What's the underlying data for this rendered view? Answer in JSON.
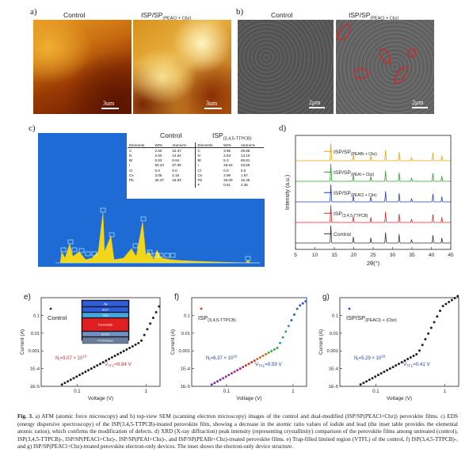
{
  "panel_a": {
    "label": "a)",
    "titles": [
      "Control",
      "ISP/SP",
      "(PEACl + Cbz)"
    ],
    "scale": [
      "3um",
      "3um"
    ]
  },
  "panel_b": {
    "label": "b)",
    "titles": [
      "Control",
      "ISP/SP",
      "(PEACl + Cbz)"
    ],
    "scale": [
      "2μm",
      "2μm"
    ]
  },
  "panel_c": {
    "label": "c)",
    "header_control": "Control",
    "header_isp": "ISP",
    "header_isp_sub": "(3,4,5-TTPCB)",
    "col_headers": [
      "Elements",
      "Wt%",
      "Atomic%",
      "Elements",
      "Wt%",
      "Atomic%"
    ],
    "rows": [
      [
        "C",
        "2.60",
        "22.37",
        "C",
        "3.96",
        "29.88"
      ],
      [
        "N",
        "2.50",
        "14.54",
        "N",
        "2.54",
        "14.15"
      ],
      [
        "Br",
        "5.53",
        "6.64",
        "Br",
        "5.3",
        "65.81"
      ],
      [
        "I",
        "50.24",
        "37.95",
        "I",
        "48.64",
        "33.56"
      ],
      [
        "Cl",
        "0.0",
        "0.0",
        "Cl",
        "0.0",
        "0.0"
      ],
      [
        "Cs",
        "3.05",
        "2.16",
        "Cs",
        "2.99",
        "1.97"
      ],
      [
        "Pb",
        "36.37",
        "16.83",
        "Pb",
        "36.05",
        "15.48"
      ],
      [
        "",
        "",
        "",
        "F",
        "0.51",
        "2.35"
      ]
    ]
  },
  "chart_data": [
    {
      "type": "line",
      "panel": "d",
      "xlabel": "2θ(°)",
      "ylabel": "Intensity (a.u.)",
      "xlim": [
        5,
        45
      ],
      "xticks": [
        5,
        10,
        15,
        20,
        25,
        30,
        35,
        40,
        45
      ],
      "series": [
        {
          "name": "Control",
          "color": "#333333"
        },
        {
          "name": "ISP",
          "sub": "(3,4,5-TTPCB)",
          "color": "#d62728"
        },
        {
          "name": "ISP/SP",
          "sub": "(PEACl + Cbz)",
          "color": "#1f3fbf"
        },
        {
          "name": "ISP/SP",
          "sub": "(PEAI + Cbz)",
          "color": "#2ca02c"
        },
        {
          "name": "ISP/SP",
          "sub": "(PEABr + Cbz)",
          "color": "#f0a30a"
        }
      ]
    },
    {
      "type": "scatter",
      "panel": "e",
      "xlabel": "Voltage (V)",
      "ylabel": "Current (A)",
      "name": "Control",
      "annot_nt": "N",
      "annot_nt_sub": "t",
      "annot_nt_val": "=9.07 × 10",
      "annot_nt_exp": "15",
      "annot_v": "V",
      "annot_v_sub": "TFL",
      "annot_v_val": "=0.84 V",
      "color": "#222222",
      "yticks": [
        "0.1",
        "0.01",
        "0.001",
        "1E-4",
        "1E-5"
      ],
      "xticks": [
        "0.1",
        "1"
      ],
      "device_layers": [
        "Ag",
        "BCP",
        "C60",
        "Perovskite",
        "SnO2",
        "FTO/Glass"
      ]
    },
    {
      "type": "scatter",
      "panel": "f",
      "xlabel": "Voltage (V)",
      "ylabel": "Current (A)",
      "name": "ISP",
      "name_sub": "(3,4,5-TTPCB)",
      "annot_nt": "N",
      "annot_nt_sub": "t",
      "annot_nt_val": "=6.37 × 10",
      "annot_nt_exp": "15",
      "annot_v": "V",
      "annot_v_sub": "TFL",
      "annot_v_val": "=0.59 V",
      "color": "#e8312b",
      "yticks": [
        "0.1",
        "0.01",
        "0.001",
        "1E-4",
        "1E-5"
      ],
      "xticks": [
        "0.1",
        "1"
      ]
    },
    {
      "type": "scatter",
      "panel": "g",
      "xlabel": "Voltage (V)",
      "ylabel": "Current (A)",
      "name": "ISP/SP",
      "name_sub": "(PEACl) + (Cbz)",
      "annot_nt": "N",
      "annot_nt_sub": "t",
      "annot_nt_val": "=5.29 × 10",
      "annot_nt_exp": "15",
      "annot_v": "V",
      "annot_v_sub": "TFL",
      "annot_v_val": "=0.41 V",
      "color": "#1f3fdf",
      "yticks": [
        "0.1",
        "0.01",
        "0.001",
        "1E-4",
        "1E-5"
      ],
      "xticks": [
        "0.1",
        "1"
      ]
    }
  ],
  "caption": {
    "fig": "Fig. 3.",
    "text": " a) AFM (atomic force microscopy) and b) top-view SEM (scanning electron microscopy) images of the control and dual-modified (ISP/SP(PEACl+Cbz)) perovskite films. c) EDS (energy dispersive spectroscopy) of the ISP(3,4,5-TTPCB)-treated perovskite film, showing a decrease in the atomic ratio values of iodide and lead (the inset table provides the elemental atomic ratios), which confirms the modification of defects. d) XRD (X-ray diffraction) peak intensity (representing crystallinity) comparison of the perovskite films among untreated (control), ISP(3,4,5-TTPCB)-, ISP/SP(PEACl+Cbz)-, ISP/SP(PEAI+Cbz)-, and ISP/SP(PEABr+Cbz)-treated perovskite films. e) Trap-filled limited region (VTFL) of the control, f) ISP(3,4,5-TTPCB)-, and g) ISP/SP(PEACl+Cbz)-treated perovskite electron-only devices. The inset shows the electron-only device structure."
  }
}
